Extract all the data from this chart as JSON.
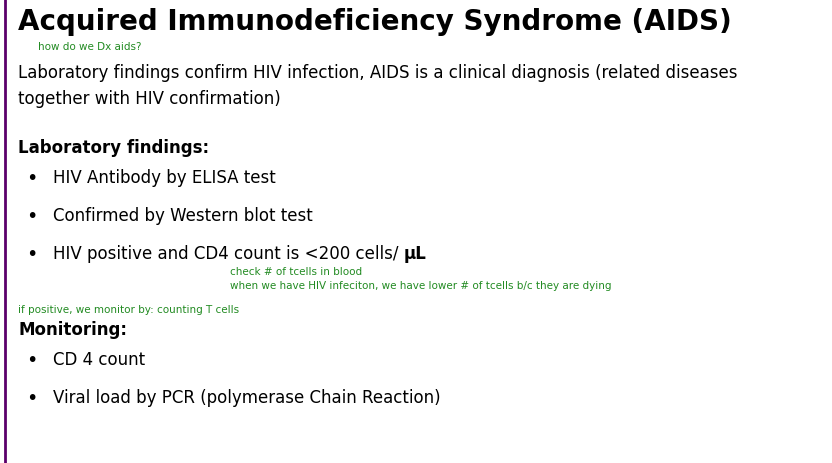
{
  "title": "Acquired Immunodeficiency Syndrome (AIDS)",
  "subtitle_green": "how do we Dx aids?",
  "intro_text": "Laboratory findings confirm HIV infection, AIDS is a clinical diagnosis (related diseases\ntogether with HIV confirmation)",
  "lab_heading": "Laboratory findings:",
  "lab_bullet1": "HIV Antibody by ELISA test",
  "lab_bullet2": "Confirmed by Western blot test",
  "lab_bullet3_normal": "HIV positive and CD4 count is <200 cells/ ",
  "lab_bullet3_bold": "μL",
  "green_note1": "check # of tcells in blood",
  "green_note2": "when we have HIV infeciton, we have lower # of tcells b/c they are dying",
  "green_note3": "if positive, we monitor by: counting T cells",
  "monitor_heading": "Monitoring:",
  "monitor_bullet1": "CD 4 count",
  "monitor_bullet2": "Viral load by PCR (polymerase Chain Reaction)",
  "bg_color": "#ffffff",
  "title_color": "#000000",
  "green_color": "#228B22",
  "body_color": "#000000",
  "border_color": "#5B006A",
  "title_fontsize": 20,
  "heading_fontsize": 12,
  "body_fontsize": 12,
  "green_fontsize": 7.5,
  "intro_fontsize": 12
}
